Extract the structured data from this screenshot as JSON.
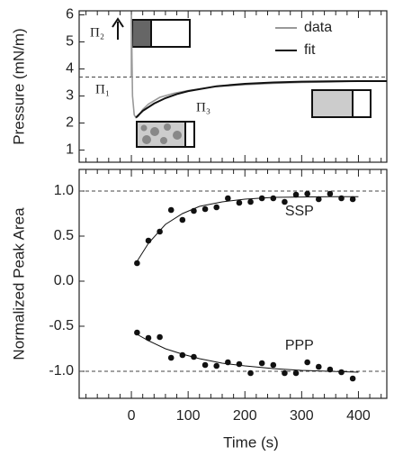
{
  "chart_data": [
    {
      "type": "line",
      "ylabel": "Pressure (mN/m)",
      "xlim": [
        -92,
        450
      ],
      "ylim": [
        0.55,
        6.15
      ],
      "xticks": [
        0,
        100,
        200,
        300,
        400
      ],
      "xminorticks": [
        -80,
        -60,
        -40,
        -20,
        20,
        40,
        60,
        80,
        120,
        140,
        160,
        180,
        220,
        240,
        260,
        280,
        320,
        340,
        360,
        380,
        420,
        440
      ],
      "yticks": [
        1,
        2,
        3,
        4,
        5,
        6
      ],
      "hlines": [
        3.7
      ],
      "legend": "upper right",
      "annotations": [
        "Π₂",
        "Π₁",
        "Π₃"
      ],
      "series": [
        {
          "name": "data",
          "color": "#999999",
          "x": [
            0,
            0,
            2,
            5,
            8,
            12,
            20,
            30,
            50,
            75,
            100,
            150,
            200,
            250,
            300,
            350,
            400,
            450
          ],
          "values": [
            3.7,
            6.0,
            3.0,
            2.3,
            2.2,
            2.25,
            2.5,
            2.7,
            2.95,
            3.1,
            3.2,
            3.35,
            3.42,
            3.47,
            3.5,
            3.52,
            3.55,
            3.56
          ]
        },
        {
          "name": "fit",
          "color": "#111111",
          "x": [
            8,
            20,
            40,
            60,
            80,
            100,
            150,
            200,
            250,
            300,
            350,
            400,
            450
          ],
          "values": [
            2.2,
            2.45,
            2.72,
            2.92,
            3.07,
            3.18,
            3.36,
            3.45,
            3.5,
            3.53,
            3.54,
            3.55,
            3.55
          ]
        }
      ]
    },
    {
      "type": "scatter",
      "ylabel": "Normalized Peak Area",
      "xlabel": "Time (s)",
      "xlim": [
        -92,
        450
      ],
      "ylim": [
        -1.3,
        1.24
      ],
      "xticks": [
        0,
        100,
        200,
        300,
        400
      ],
      "xminorticks": [
        -80,
        -60,
        -40,
        -20,
        20,
        40,
        60,
        80,
        120,
        140,
        160,
        180,
        220,
        240,
        260,
        280,
        320,
        340,
        360,
        380,
        420,
        440
      ],
      "yticks": [
        {
          "value": 1.0,
          "label": "1.0"
        },
        {
          "value": 0.5,
          "label": "0.5"
        },
        {
          "value": 0.0,
          "label": "0.0"
        },
        {
          "value": -0.5,
          "label": "-0.5"
        },
        {
          "value": -1.0,
          "label": "-1.0"
        }
      ],
      "hlines": [
        1.0,
        -1.0
      ],
      "series": [
        {
          "name": "SSP",
          "color": "#111111",
          "x": [
            10,
            30,
            50,
            70,
            90,
            110,
            130,
            150,
            170,
            190,
            210,
            230,
            250,
            270,
            290,
            310,
            330,
            350,
            370,
            390
          ],
          "values": [
            0.2,
            0.45,
            0.55,
            0.79,
            0.68,
            0.78,
            0.8,
            0.82,
            0.92,
            0.87,
            0.88,
            0.92,
            0.92,
            0.88,
            0.96,
            0.97,
            0.91,
            0.97,
            0.92,
            0.91
          ],
          "fit_x": [
            10,
            30,
            60,
            90,
            120,
            160,
            200,
            250,
            300,
            350,
            400
          ],
          "fit_values": [
            0.22,
            0.42,
            0.63,
            0.75,
            0.83,
            0.88,
            0.91,
            0.93,
            0.934,
            0.937,
            0.938
          ]
        },
        {
          "name": "PPP",
          "color": "#111111",
          "x": [
            10,
            30,
            50,
            70,
            90,
            110,
            130,
            150,
            170,
            190,
            210,
            230,
            250,
            270,
            290,
            310,
            330,
            350,
            370,
            390
          ],
          "values": [
            -0.57,
            -0.63,
            -0.62,
            -0.85,
            -0.82,
            -0.84,
            -0.93,
            -0.94,
            -0.9,
            -0.92,
            -1.02,
            -0.91,
            -0.93,
            -1.02,
            -1.02,
            -0.9,
            -0.95,
            -0.98,
            -1.01,
            -1.08
          ],
          "fit_x": [
            10,
            30,
            60,
            90,
            120,
            160,
            200,
            250,
            300,
            350,
            400
          ],
          "fit_values": [
            -0.59,
            -0.66,
            -0.75,
            -0.81,
            -0.86,
            -0.91,
            -0.94,
            -0.97,
            -0.99,
            -1.0,
            -1.01
          ]
        }
      ]
    }
  ]
}
